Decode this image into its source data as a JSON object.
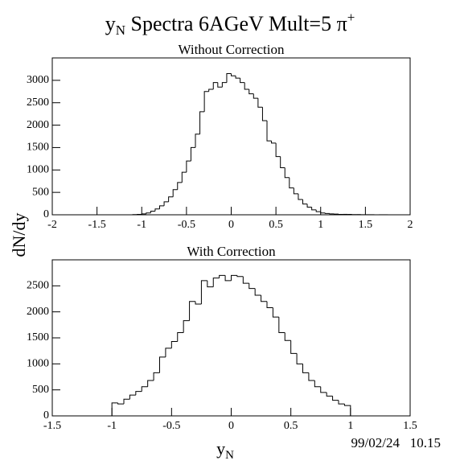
{
  "title": {
    "main": "y",
    "sub": "N",
    "rest": " Spectra 6AGeV Mult=5 π",
    "sup": "+"
  },
  "ylabel": "dN/dy",
  "xlabel": {
    "main": "y",
    "sub": "N"
  },
  "timestamp": "99/02/24   10.15",
  "chart_data": [
    {
      "type": "histogram",
      "subtitle": "Without Correction",
      "color": "#000000",
      "bins": [
        -1.1,
        -1.05,
        -1,
        -0.95,
        -0.9,
        -0.85,
        -0.8,
        -0.75,
        -0.7,
        -0.65,
        -0.6,
        -0.55,
        -0.5,
        -0.45,
        -0.4,
        -0.35,
        -0.3,
        -0.25,
        -0.2,
        -0.15,
        -0.1,
        -0.05,
        0,
        0.05,
        0.1,
        0.15,
        0.2,
        0.25,
        0.3,
        0.35,
        0.4,
        0.45,
        0.5,
        0.55,
        0.6,
        0.65,
        0.7,
        0.75,
        0.8,
        0.85,
        0.9,
        0.95,
        1,
        1.05,
        1.1,
        1.15,
        1.2,
        1.25,
        1.3,
        1.35,
        1.4,
        1.45,
        1.5,
        1.55,
        1.6,
        1.65,
        1.7,
        1.75,
        1.8
      ],
      "values": [
        5,
        10,
        20,
        40,
        80,
        130,
        200,
        290,
        400,
        560,
        720,
        950,
        1200,
        1500,
        1800,
        2300,
        2750,
        2800,
        2950,
        2850,
        2950,
        3150,
        3100,
        3050,
        2950,
        2800,
        2700,
        2600,
        2400,
        2100,
        1650,
        1600,
        1300,
        1050,
        830,
        600,
        470,
        340,
        240,
        170,
        110,
        70,
        40,
        30,
        20,
        15,
        10,
        10,
        8,
        5,
        5,
        3,
        2,
        2,
        1,
        1,
        1,
        1
      ],
      "xlim": [
        -2,
        2
      ],
      "xticks": [
        -2,
        -1.5,
        -1,
        -0.5,
        0,
        0.5,
        1,
        1.5,
        2
      ],
      "ylim": [
        0,
        3500
      ],
      "yticks": [
        0,
        500,
        1000,
        1500,
        2000,
        2500,
        3000
      ]
    },
    {
      "type": "histogram",
      "subtitle": "With Correction",
      "color": "#000000",
      "bins": [
        -1,
        -0.95,
        -0.9,
        -0.85,
        -0.8,
        -0.75,
        -0.7,
        -0.65,
        -0.6,
        -0.55,
        -0.5,
        -0.45,
        -0.4,
        -0.35,
        -0.3,
        -0.25,
        -0.2,
        -0.15,
        -0.1,
        -0.05,
        0,
        0.05,
        0.1,
        0.15,
        0.2,
        0.25,
        0.3,
        0.35,
        0.4,
        0.45,
        0.5,
        0.55,
        0.6,
        0.65,
        0.7,
        0.75,
        0.8,
        0.85,
        0.9,
        0.95,
        1
      ],
      "values": [
        250,
        230,
        320,
        400,
        470,
        560,
        680,
        830,
        1130,
        1300,
        1430,
        1600,
        1830,
        2200,
        2150,
        2600,
        2480,
        2650,
        2700,
        2600,
        2700,
        2680,
        2550,
        2450,
        2320,
        2200,
        2080,
        1900,
        1600,
        1450,
        1200,
        1000,
        830,
        680,
        560,
        450,
        380,
        300,
        230,
        200
      ],
      "xlim": [
        -1.5,
        1.5
      ],
      "xticks": [
        -1.5,
        -1,
        -0.5,
        0,
        0.5,
        1,
        1.5
      ],
      "ylim": [
        0,
        3000
      ],
      "yticks": [
        0,
        500,
        1000,
        1500,
        2000,
        2500
      ]
    }
  ]
}
